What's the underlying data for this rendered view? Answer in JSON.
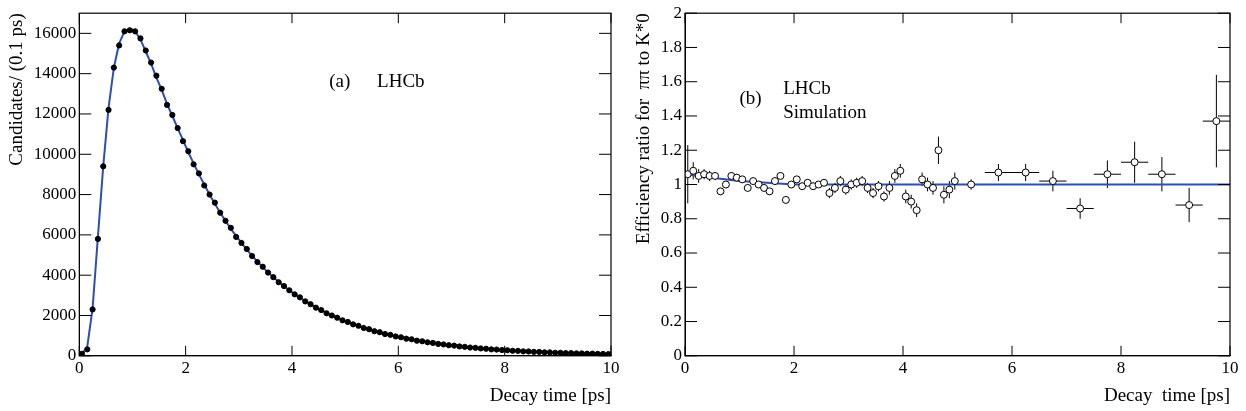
{
  "chart_data": [
    {
      "type": "scatter",
      "xlabel": "Decay time [ps]",
      "ylabel": "Candidates/ (0.1 ps)",
      "annotations": [
        "(a)",
        "LHCb"
      ],
      "xlim": [
        0,
        10
      ],
      "xticks": [
        0,
        2,
        4,
        6,
        8,
        10
      ],
      "ylim": [
        0,
        17000
      ],
      "yticks": [
        0,
        2000,
        4000,
        6000,
        8000,
        10000,
        12000,
        14000,
        16000
      ],
      "grid": false,
      "series": [
        {
          "type": "scatter",
          "marker": "circle",
          "color": "#000000",
          "x": [
            0.05,
            0.15,
            0.25,
            0.35,
            0.45,
            0.55,
            0.65,
            0.75,
            0.85,
            0.95,
            1.05,
            1.15,
            1.25,
            1.35,
            1.45,
            1.55,
            1.65,
            1.75,
            1.85,
            1.95,
            2.05,
            2.15,
            2.25,
            2.35,
            2.45,
            2.55,
            2.65,
            2.75,
            2.85,
            2.95,
            3.05,
            3.15,
            3.25,
            3.35,
            3.45,
            3.55,
            3.65,
            3.75,
            3.85,
            3.95,
            4.05,
            4.15,
            4.25,
            4.35,
            4.45,
            4.55,
            4.65,
            4.75,
            4.85,
            4.95,
            5.05,
            5.15,
            5.25,
            5.35,
            5.45,
            5.55,
            5.65,
            5.75,
            5.85,
            5.95,
            6.05,
            6.15,
            6.25,
            6.35,
            6.45,
            6.55,
            6.65,
            6.75,
            6.85,
            6.95,
            7.05,
            7.15,
            7.25,
            7.35,
            7.45,
            7.55,
            7.65,
            7.75,
            7.85,
            7.95,
            8.05,
            8.15,
            8.25,
            8.35,
            8.45,
            8.55,
            8.65,
            8.75,
            8.85,
            8.95,
            9.05,
            9.15,
            9.25,
            9.35,
            9.45,
            9.55,
            9.65,
            9.75,
            9.85,
            9.95
          ],
          "values": [
            100,
            320,
            2300,
            5800,
            9400,
            12200,
            14300,
            15400,
            16100,
            16150,
            16100,
            15750,
            15150,
            14550,
            13900,
            13250,
            12450,
            11950,
            11300,
            10650,
            10150,
            9500,
            9050,
            8450,
            8000,
            7600,
            7100,
            6700,
            6350,
            5900,
            5600,
            5300,
            4950,
            4650,
            4420,
            4130,
            3900,
            3650,
            3460,
            3250,
            3050,
            2900,
            2700,
            2560,
            2390,
            2270,
            2110,
            2000,
            1890,
            1760,
            1680,
            1560,
            1490,
            1380,
            1320,
            1220,
            1170,
            1080,
            1040,
            960,
            920,
            850,
            820,
            750,
            720,
            670,
            640,
            590,
            565,
            525,
            505,
            465,
            445,
            410,
            395,
            365,
            350,
            320,
            310,
            285,
            275,
            250,
            245,
            220,
            215,
            195,
            190,
            172,
            170,
            152,
            150,
            135,
            133,
            120,
            118,
            106,
            105,
            95,
            92,
            84
          ]
        },
        {
          "type": "line",
          "line_style": "solid",
          "color": "#2c4fb5",
          "x": [
            0.05,
            0.15,
            0.25,
            0.35,
            0.45,
            0.55,
            0.65,
            0.75,
            0.85,
            0.95,
            1.05,
            1.15,
            1.25,
            1.35,
            1.45,
            1.55,
            1.65,
            1.75,
            1.85,
            1.95,
            2.05,
            2.15,
            2.25,
            2.35,
            2.45,
            2.55,
            2.65,
            2.75,
            2.85,
            2.95,
            3.05,
            3.15,
            3.25,
            3.35,
            3.45,
            3.55,
            3.65,
            3.75,
            3.85,
            3.95,
            4.05,
            4.15,
            4.25,
            4.35,
            4.45,
            4.55,
            4.65,
            4.75,
            4.85,
            4.95,
            5.05,
            5.15,
            5.25,
            5.35,
            5.45,
            5.55,
            5.65,
            5.75,
            5.85,
            5.95,
            6.05,
            6.15,
            6.25,
            6.35,
            6.45,
            6.55,
            6.65,
            6.75,
            6.85,
            6.95,
            7.05,
            7.15,
            7.25,
            7.35,
            7.45,
            7.55,
            7.65,
            7.75,
            7.85,
            7.95,
            8.05,
            8.15,
            8.25,
            8.35,
            8.45,
            8.55,
            8.65,
            8.75,
            8.85,
            8.95,
            9.05,
            9.15,
            9.25,
            9.35,
            9.45,
            9.55,
            9.65,
            9.75,
            9.85,
            9.95
          ],
          "values": [
            80,
            450,
            2350,
            5900,
            9400,
            12300,
            14300,
            15500,
            16100,
            16250,
            16100,
            15700,
            15100,
            14500,
            13800,
            13200,
            12500,
            11900,
            11300,
            10700,
            10100,
            9550,
            9000,
            8500,
            8000,
            7550,
            7100,
            6700,
            6300,
            5950,
            5600,
            5270,
            4960,
            4670,
            4400,
            4140,
            3900,
            3670,
            3450,
            3250,
            3060,
            2880,
            2710,
            2550,
            2400,
            2260,
            2130,
            2000,
            1880,
            1770,
            1670,
            1570,
            1480,
            1390,
            1310,
            1230,
            1160,
            1090,
            1030,
            970,
            910,
            860,
            810,
            760,
            715,
            675,
            635,
            595,
            560,
            530,
            500,
            470,
            440,
            415,
            390,
            370,
            345,
            325,
            306,
            288,
            271,
            255,
            240,
            226,
            213,
            200,
            188,
            177,
            167,
            157,
            148,
            139,
            131,
            123,
            116,
            109,
            103,
            97,
            91,
            86
          ]
        }
      ]
    },
    {
      "type": "scatter",
      "xlabel": "Decay  time [ps]",
      "ylabel": "Efficiency ratio for  ππ to K*0",
      "annotations": [
        "(b)",
        "LHCb",
        "Simulation"
      ],
      "xlim": [
        0,
        10
      ],
      "xticks": [
        0,
        2,
        4,
        6,
        8,
        10
      ],
      "ylim": [
        0,
        2
      ],
      "yticks": [
        0,
        0.2,
        0.4,
        0.6,
        0.8,
        1,
        1.2,
        1.4,
        1.6,
        1.8,
        2
      ],
      "grid": false,
      "series": [
        {
          "type": "scatter",
          "marker": "open_circle",
          "color": "#000000",
          "x": [
            0.05,
            0.15,
            0.25,
            0.35,
            0.45,
            0.55,
            0.65,
            0.75,
            0.85,
            0.95,
            1.05,
            1.15,
            1.25,
            1.35,
            1.45,
            1.55,
            1.65,
            1.75,
            1.85,
            1.95,
            2.05,
            2.15,
            2.25,
            2.35,
            2.45,
            2.55,
            2.65,
            2.75,
            2.85,
            2.95,
            3.05,
            3.15,
            3.25,
            3.35,
            3.45,
            3.55,
            3.65,
            3.75,
            3.85,
            3.95,
            4.05,
            4.15,
            4.25,
            4.35,
            4.45,
            4.55,
            4.65,
            4.75,
            4.85,
            4.95,
            5.25,
            5.75,
            6.25,
            6.75,
            7.25,
            7.75,
            8.25,
            8.75,
            9.25,
            9.75
          ],
          "values": [
            1.06,
            1.08,
            1.05,
            1.06,
            1.05,
            1.05,
            0.96,
            1.0,
            1.05,
            1.04,
            1.03,
            0.98,
            1.02,
            1.0,
            0.98,
            0.96,
            1.02,
            1.05,
            0.91,
            1.0,
            1.03,
            0.99,
            1.01,
            0.99,
            1.0,
            1.01,
            0.95,
            0.98,
            1.02,
            0.97,
            1.0,
            1.01,
            1.02,
            0.98,
            0.95,
            0.99,
            0.93,
            0.98,
            1.05,
            1.08,
            0.93,
            0.9,
            0.85,
            1.03,
            1.0,
            0.98,
            1.2,
            0.94,
            0.97,
            1.02,
            1.0,
            1.07,
            1.07,
            1.02,
            0.86,
            1.06,
            1.13,
            1.06,
            0.88,
            1.37
          ],
          "yerr": [
            0.17,
            0.05,
            0.04,
            0.03,
            0.03,
            0.02,
            0.02,
            0.02,
            0.02,
            0.02,
            0.02,
            0.02,
            0.02,
            0.02,
            0.02,
            0.02,
            0.02,
            0.02,
            0.02,
            0.02,
            0.02,
            0.02,
            0.02,
            0.02,
            0.02,
            0.02,
            0.03,
            0.03,
            0.03,
            0.03,
            0.03,
            0.03,
            0.03,
            0.03,
            0.03,
            0.03,
            0.03,
            0.04,
            0.04,
            0.04,
            0.04,
            0.04,
            0.04,
            0.04,
            0.04,
            0.04,
            0.08,
            0.05,
            0.05,
            0.05,
            0.03,
            0.05,
            0.05,
            0.06,
            0.06,
            0.08,
            0.12,
            0.1,
            0.1,
            0.27
          ],
          "xerr": [
            0.05,
            0.05,
            0.05,
            0.05,
            0.05,
            0.05,
            0.05,
            0.05,
            0.05,
            0.05,
            0.05,
            0.05,
            0.05,
            0.05,
            0.05,
            0.05,
            0.05,
            0.05,
            0.05,
            0.05,
            0.05,
            0.05,
            0.05,
            0.05,
            0.05,
            0.05,
            0.05,
            0.05,
            0.05,
            0.05,
            0.05,
            0.05,
            0.05,
            0.05,
            0.05,
            0.05,
            0.05,
            0.05,
            0.05,
            0.05,
            0.05,
            0.05,
            0.05,
            0.05,
            0.05,
            0.05,
            0.05,
            0.05,
            0.05,
            0.05,
            0.25,
            0.25,
            0.25,
            0.25,
            0.25,
            0.25,
            0.25,
            0.25,
            0.25,
            0.25
          ]
        },
        {
          "type": "line",
          "line_style": "solid",
          "color": "#2c4fb5",
          "x": [
            0,
            0.5,
            1,
            1.5,
            2,
            10
          ],
          "values": [
            1.06,
            1.04,
            1.02,
            1.01,
            1.0,
            1.0
          ]
        }
      ]
    }
  ]
}
